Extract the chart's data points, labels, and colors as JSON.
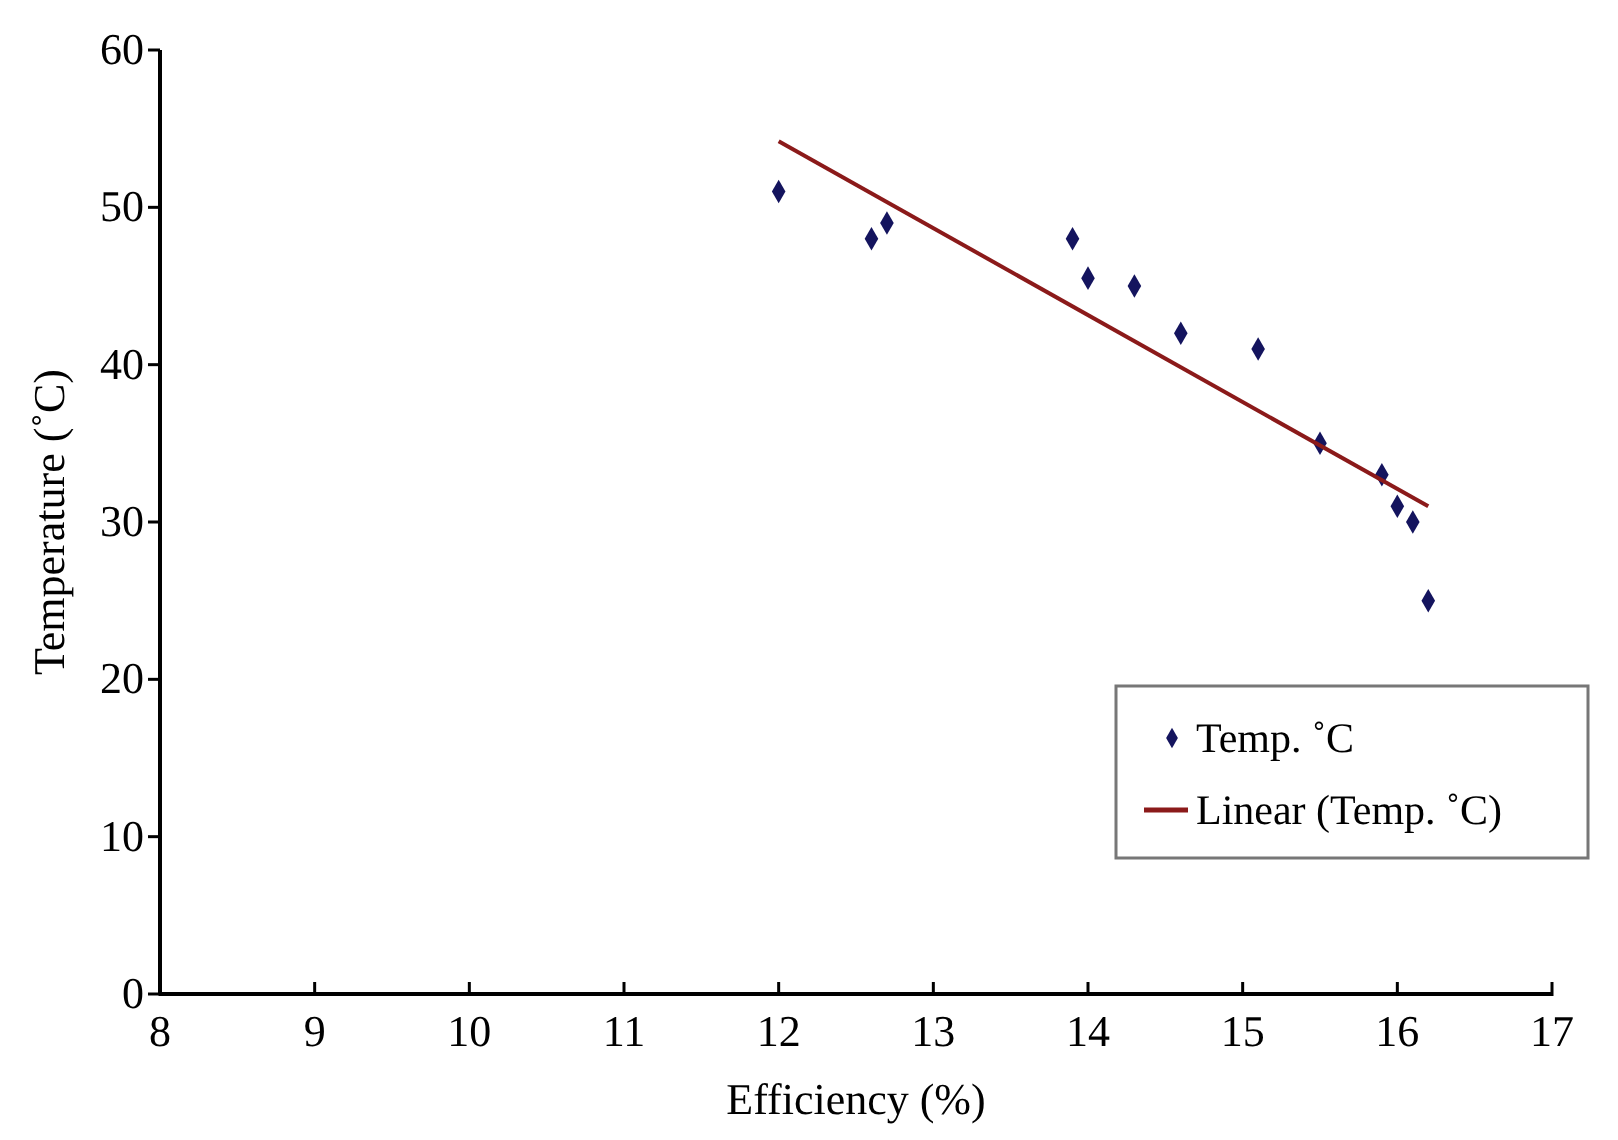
{
  "chart_data": {
    "type": "scatter",
    "xlabel": "Efficiency (%)",
    "ylabel": "Temperature (˚C)",
    "xlim": [
      8,
      17
    ],
    "xticks": [
      8,
      9,
      10,
      11,
      12,
      13,
      14,
      15,
      16,
      17
    ],
    "ylim": [
      0,
      60
    ],
    "yticks": [
      0,
      10,
      20,
      30,
      40,
      50,
      60
    ],
    "grid": false,
    "legend": "bottom right",
    "series": [
      {
        "name": "Temp. ˚C",
        "marker": "diamond",
        "color": "#14145e",
        "x": [
          12,
          12.6,
          12.7,
          13.9,
          14,
          14.3,
          14.6,
          15.1,
          15.5,
          15.9,
          16,
          16.1,
          16.2
        ],
        "values": [
          51,
          48,
          49,
          48,
          45.5,
          45,
          42,
          41,
          35,
          33,
          31,
          30,
          25
        ]
      },
      {
        "name": "Linear (Temp. ˚C)",
        "type": "line",
        "color": "#8b1a1a",
        "x": [
          12,
          16.2
        ],
        "values": [
          54.2,
          31
        ]
      }
    ]
  }
}
